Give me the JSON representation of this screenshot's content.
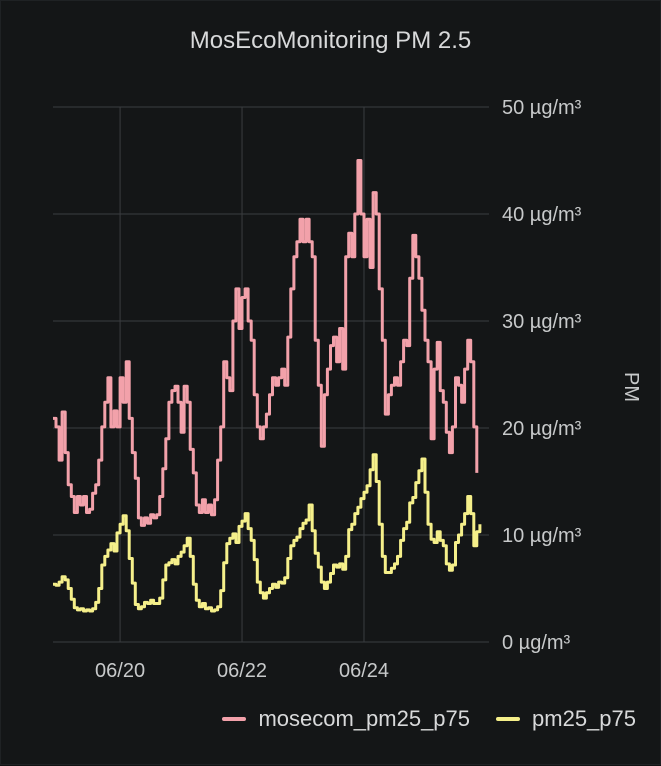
{
  "panel": {
    "title": "MosEcoMonitoring PM 2.5"
  },
  "colors": {
    "background": "#141617",
    "grid": "#3a3d40",
    "series_1": "#f2a1aa",
    "series_2": "#f5ef8a"
  },
  "chart_data": {
    "type": "line",
    "title": "MosEcoMonitoring PM 2.5",
    "xlabel": "",
    "ylabel": "PM",
    "xlim": [
      -1.1,
      6.05
    ],
    "ylim": [
      0,
      50
    ],
    "x_ticks": [
      {
        "value": 0,
        "label": "06/20"
      },
      {
        "value": 2,
        "label": "06/22"
      },
      {
        "value": 4,
        "label": "06/24"
      }
    ],
    "y_ticks": [
      {
        "value": 0,
        "label": "0 µg/m³"
      },
      {
        "value": 10,
        "label": "10 µg/m³"
      },
      {
        "value": 20,
        "label": "20 µg/m³"
      },
      {
        "value": 30,
        "label": "30 µg/m³"
      },
      {
        "value": 40,
        "label": "40 µg/m³"
      },
      {
        "value": 50,
        "label": "50 µg/m³"
      }
    ],
    "y_axis_position": "right",
    "grid": true,
    "legend_position": "bottom-right",
    "series": [
      {
        "name": "mosecom_pm25_p75",
        "color": "#f2a1aa",
        "points": [
          [
            -1.1,
            20.9
          ],
          [
            -1.05,
            20.1
          ],
          [
            -1.0,
            17.0
          ],
          [
            -0.95,
            21.5
          ],
          [
            -0.9,
            17.7
          ],
          [
            -0.85,
            14.7
          ],
          [
            -0.8,
            13.6
          ],
          [
            -0.75,
            12.1
          ],
          [
            -0.7,
            13.6
          ],
          [
            -0.65,
            12.8
          ],
          [
            -0.6,
            13.6
          ],
          [
            -0.55,
            12.1
          ],
          [
            -0.5,
            12.4
          ],
          [
            -0.45,
            13.9
          ],
          [
            -0.4,
            14.7
          ],
          [
            -0.35,
            17.0
          ],
          [
            -0.3,
            20.1
          ],
          [
            -0.25,
            22.4
          ],
          [
            -0.2,
            24.7
          ],
          [
            -0.15,
            20.1
          ],
          [
            -0.1,
            21.6
          ],
          [
            -0.05,
            20.1
          ],
          [
            0.0,
            24.7
          ],
          [
            0.05,
            22.4
          ],
          [
            0.1,
            26.2
          ],
          [
            0.15,
            20.9
          ],
          [
            0.2,
            17.7
          ],
          [
            0.25,
            15.3
          ],
          [
            0.3,
            11.6
          ],
          [
            0.35,
            10.9
          ],
          [
            0.4,
            11.6
          ],
          [
            0.45,
            11.1
          ],
          [
            0.5,
            11.9
          ],
          [
            0.55,
            11.6
          ],
          [
            0.6,
            11.9
          ],
          [
            0.65,
            13.6
          ],
          [
            0.7,
            16.2
          ],
          [
            0.75,
            19.0
          ],
          [
            0.8,
            22.4
          ],
          [
            0.85,
            23.5
          ],
          [
            0.9,
            23.9
          ],
          [
            0.95,
            22.4
          ],
          [
            1.0,
            19.6
          ],
          [
            1.05,
            23.9
          ],
          [
            1.1,
            22.4
          ],
          [
            1.15,
            18.0
          ],
          [
            1.2,
            15.8
          ],
          [
            1.25,
            12.8
          ],
          [
            1.3,
            12.1
          ],
          [
            1.35,
            13.3
          ],
          [
            1.4,
            12.1
          ],
          [
            1.45,
            12.8
          ],
          [
            1.5,
            11.9
          ],
          [
            1.55,
            13.3
          ],
          [
            1.6,
            17.0
          ],
          [
            1.65,
            20.1
          ],
          [
            1.7,
            26.2
          ],
          [
            1.75,
            24.7
          ],
          [
            1.8,
            23.5
          ],
          [
            1.85,
            30.0
          ],
          [
            1.9,
            33.0
          ],
          [
            1.95,
            29.3
          ],
          [
            2.0,
            32.2
          ],
          [
            2.05,
            33.0
          ],
          [
            2.1,
            30.0
          ],
          [
            2.15,
            28.2
          ],
          [
            2.2,
            23.1
          ],
          [
            2.25,
            20.1
          ],
          [
            2.3,
            19.0
          ],
          [
            2.35,
            20.1
          ],
          [
            2.4,
            21.3
          ],
          [
            2.45,
            23.1
          ],
          [
            2.5,
            24.7
          ],
          [
            2.55,
            24.0
          ],
          [
            2.6,
            24.7
          ],
          [
            2.65,
            25.5
          ],
          [
            2.7,
            24.0
          ],
          [
            2.75,
            28.5
          ],
          [
            2.8,
            33.0
          ],
          [
            2.85,
            36.0
          ],
          [
            2.9,
            37.4
          ],
          [
            2.95,
            39.5
          ],
          [
            3.0,
            37.4
          ],
          [
            3.05,
            39.5
          ],
          [
            3.1,
            37.4
          ],
          [
            3.15,
            36.0
          ],
          [
            3.2,
            28.2
          ],
          [
            3.25,
            24.0
          ],
          [
            3.3,
            18.3
          ],
          [
            3.35,
            23.1
          ],
          [
            3.4,
            25.5
          ],
          [
            3.45,
            27.7
          ],
          [
            3.5,
            28.5
          ],
          [
            3.55,
            26.2
          ],
          [
            3.6,
            29.3
          ],
          [
            3.65,
            25.5
          ],
          [
            3.7,
            36.0
          ],
          [
            3.75,
            38.2
          ],
          [
            3.8,
            36.0
          ],
          [
            3.85,
            40.0
          ],
          [
            3.9,
            45.0
          ],
          [
            3.95,
            40.0
          ],
          [
            4.0,
            36.0
          ],
          [
            4.05,
            39.5
          ],
          [
            4.1,
            35.0
          ],
          [
            4.15,
            42.0
          ],
          [
            4.2,
            40.0
          ],
          [
            4.25,
            33.0
          ],
          [
            4.3,
            28.2
          ],
          [
            4.35,
            21.3
          ],
          [
            4.4,
            23.1
          ],
          [
            4.45,
            24.0
          ],
          [
            4.5,
            24.7
          ],
          [
            4.55,
            24.0
          ],
          [
            4.6,
            26.2
          ],
          [
            4.65,
            28.2
          ],
          [
            4.7,
            27.7
          ],
          [
            4.75,
            34.0
          ],
          [
            4.8,
            38.0
          ],
          [
            4.85,
            36.0
          ],
          [
            4.9,
            34.0
          ],
          [
            4.95,
            31.0
          ],
          [
            5.0,
            28.2
          ],
          [
            5.05,
            26.2
          ],
          [
            5.1,
            19.0
          ],
          [
            5.15,
            25.5
          ],
          [
            5.2,
            28.0
          ],
          [
            5.25,
            23.5
          ],
          [
            5.3,
            22.4
          ],
          [
            5.35,
            19.6
          ],
          [
            5.4,
            17.7
          ],
          [
            5.45,
            20.1
          ],
          [
            5.5,
            24.7
          ],
          [
            5.55,
            24.0
          ],
          [
            5.6,
            22.4
          ],
          [
            5.65,
            25.5
          ],
          [
            5.7,
            28.2
          ],
          [
            5.75,
            26.2
          ],
          [
            5.8,
            20.1
          ],
          [
            5.85,
            15.8
          ]
        ]
      },
      {
        "name": "pm25_p75",
        "color": "#f5ef8a",
        "points": [
          [
            -1.1,
            5.4
          ],
          [
            -1.05,
            5.3
          ],
          [
            -1.0,
            5.6
          ],
          [
            -0.95,
            6.1
          ],
          [
            -0.9,
            5.8
          ],
          [
            -0.85,
            5.0
          ],
          [
            -0.8,
            4.0
          ],
          [
            -0.75,
            3.2
          ],
          [
            -0.7,
            3.0
          ],
          [
            -0.65,
            3.1
          ],
          [
            -0.6,
            2.9
          ],
          [
            -0.55,
            3.0
          ],
          [
            -0.5,
            2.9
          ],
          [
            -0.45,
            3.1
          ],
          [
            -0.4,
            3.7
          ],
          [
            -0.35,
            5.0
          ],
          [
            -0.3,
            7.2
          ],
          [
            -0.25,
            8.0
          ],
          [
            -0.2,
            8.6
          ],
          [
            -0.15,
            9.2
          ],
          [
            -0.1,
            8.5
          ],
          [
            -0.05,
            10.2
          ],
          [
            0.0,
            11.0
          ],
          [
            0.05,
            11.8
          ],
          [
            0.1,
            10.4
          ],
          [
            0.15,
            7.8
          ],
          [
            0.2,
            5.5
          ],
          [
            0.25,
            3.5
          ],
          [
            0.3,
            3.1
          ],
          [
            0.35,
            3.3
          ],
          [
            0.4,
            3.7
          ],
          [
            0.45,
            3.6
          ],
          [
            0.5,
            3.9
          ],
          [
            0.55,
            3.6
          ],
          [
            0.6,
            3.6
          ],
          [
            0.65,
            4.1
          ],
          [
            0.7,
            5.8
          ],
          [
            0.75,
            7.2
          ],
          [
            0.8,
            7.4
          ],
          [
            0.85,
            7.7
          ],
          [
            0.9,
            7.3
          ],
          [
            0.95,
            8.0
          ],
          [
            1.0,
            8.4
          ],
          [
            1.05,
            9.0
          ],
          [
            1.1,
            9.7
          ],
          [
            1.15,
            8.0
          ],
          [
            1.2,
            5.4
          ],
          [
            1.25,
            3.9
          ],
          [
            1.3,
            3.3
          ],
          [
            1.35,
            3.6
          ],
          [
            1.4,
            3.1
          ],
          [
            1.45,
            3.2
          ],
          [
            1.5,
            2.9
          ],
          [
            1.55,
            3.0
          ],
          [
            1.6,
            3.3
          ],
          [
            1.65,
            4.8
          ],
          [
            1.7,
            7.4
          ],
          [
            1.75,
            9.2
          ],
          [
            1.8,
            9.7
          ],
          [
            1.85,
            10.1
          ],
          [
            1.9,
            9.3
          ],
          [
            1.95,
            10.8
          ],
          [
            2.0,
            11.3
          ],
          [
            2.05,
            12.0
          ],
          [
            2.1,
            10.6
          ],
          [
            2.15,
            9.5
          ],
          [
            2.2,
            7.7
          ],
          [
            2.25,
            5.6
          ],
          [
            2.3,
            4.6
          ],
          [
            2.35,
            4.1
          ],
          [
            2.4,
            4.6
          ],
          [
            2.45,
            5.0
          ],
          [
            2.5,
            5.4
          ],
          [
            2.55,
            5.1
          ],
          [
            2.6,
            5.6
          ],
          [
            2.65,
            5.5
          ],
          [
            2.7,
            6.0
          ],
          [
            2.75,
            7.8
          ],
          [
            2.8,
            9.0
          ],
          [
            2.85,
            9.5
          ],
          [
            2.9,
            9.8
          ],
          [
            2.95,
            10.6
          ],
          [
            3.0,
            11.1
          ],
          [
            3.05,
            11.4
          ],
          [
            3.1,
            12.8
          ],
          [
            3.15,
            10.4
          ],
          [
            3.2,
            8.3
          ],
          [
            3.25,
            7.0
          ],
          [
            3.3,
            5.6
          ],
          [
            3.35,
            5.0
          ],
          [
            3.4,
            5.6
          ],
          [
            3.45,
            6.4
          ],
          [
            3.5,
            7.2
          ],
          [
            3.55,
            7.0
          ],
          [
            3.6,
            7.3
          ],
          [
            3.65,
            6.8
          ],
          [
            3.7,
            8.0
          ],
          [
            3.75,
            10.5
          ],
          [
            3.8,
            11.0
          ],
          [
            3.85,
            12.0
          ],
          [
            3.9,
            12.6
          ],
          [
            3.95,
            13.4
          ],
          [
            4.0,
            14.0
          ],
          [
            4.05,
            14.6
          ],
          [
            4.1,
            16.1
          ],
          [
            4.15,
            17.5
          ],
          [
            4.2,
            15.0
          ],
          [
            4.25,
            11.0
          ],
          [
            4.3,
            8.0
          ],
          [
            4.35,
            6.5
          ],
          [
            4.4,
            6.5
          ],
          [
            4.45,
            6.9
          ],
          [
            4.5,
            7.3
          ],
          [
            4.55,
            8.0
          ],
          [
            4.6,
            9.5
          ],
          [
            4.65,
            10.6
          ],
          [
            4.7,
            11.2
          ],
          [
            4.75,
            13.0
          ],
          [
            4.8,
            13.5
          ],
          [
            4.85,
            14.9
          ],
          [
            4.9,
            16.0
          ],
          [
            4.95,
            17.1
          ],
          [
            5.0,
            14.0
          ],
          [
            5.05,
            11.0
          ],
          [
            5.1,
            9.6
          ],
          [
            5.15,
            9.3
          ],
          [
            5.2,
            10.3
          ],
          [
            5.25,
            9.5
          ],
          [
            5.3,
            9.0
          ],
          [
            5.35,
            7.3
          ],
          [
            5.4,
            6.7
          ],
          [
            5.45,
            7.2
          ],
          [
            5.5,
            9.3
          ],
          [
            5.55,
            10.0
          ],
          [
            5.6,
            11.0
          ],
          [
            5.65,
            12.0
          ],
          [
            5.7,
            13.6
          ],
          [
            5.75,
            12.0
          ],
          [
            5.8,
            9.0
          ],
          [
            5.85,
            10.3
          ],
          [
            5.9,
            11.0
          ]
        ]
      }
    ]
  }
}
